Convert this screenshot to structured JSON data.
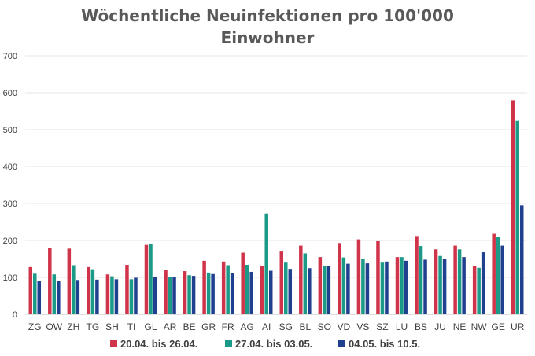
{
  "chart_data": {
    "type": "bar",
    "title_line1": "Wöchentliche Neuinfektionen pro 100'000",
    "title_line2": "Einwohner",
    "xlabel": "",
    "ylabel": "",
    "ylim": [
      0,
      700
    ],
    "yticks": [
      0,
      100,
      200,
      300,
      400,
      500,
      600,
      700
    ],
    "grid": true,
    "legend_position": "bottom",
    "categories": [
      "ZG",
      "OW",
      "ZH",
      "TG",
      "SH",
      "TI",
      "GL",
      "AR",
      "BE",
      "GR",
      "FR",
      "AG",
      "AI",
      "SG",
      "BL",
      "SO",
      "VD",
      "VS",
      "SZ",
      "LU",
      "BS",
      "JU",
      "NE",
      "NW",
      "GE",
      "UR"
    ],
    "series": [
      {
        "name": "20.04. bis 26.04.",
        "color": "#d0344b",
        "values": [
          128,
          180,
          178,
          128,
          108,
          134,
          188,
          120,
          117,
          145,
          143,
          167,
          130,
          170,
          186,
          155,
          193,
          203,
          198,
          155,
          212,
          176,
          186,
          130,
          218,
          580
        ]
      },
      {
        "name": "27.04. bis 03.05.",
        "color": "#1a9a87",
        "values": [
          110,
          108,
          133,
          122,
          103,
          95,
          191,
          100,
          106,
          113,
          133,
          134,
          273,
          140,
          165,
          132,
          154,
          151,
          140,
          155,
          185,
          158,
          176,
          126,
          210,
          524
        ]
      },
      {
        "name": "04.05. bis 10.5.",
        "color": "#1f3f8f",
        "values": [
          90,
          90,
          93,
          94,
          95,
          99,
          100,
          100,
          104,
          109,
          111,
          115,
          118,
          123,
          125,
          130,
          137,
          138,
          143,
          145,
          148,
          149,
          155,
          168,
          186,
          295
        ]
      }
    ]
  }
}
